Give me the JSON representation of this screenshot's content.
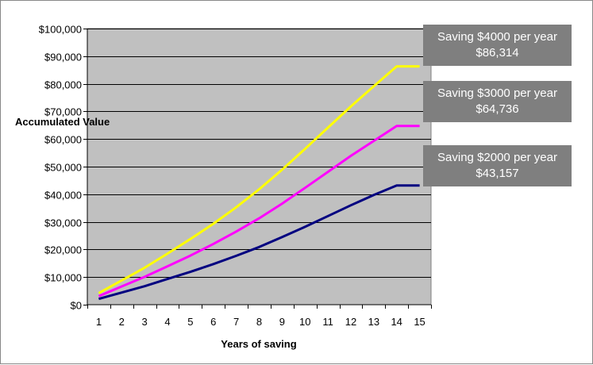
{
  "chart_data": {
    "type": "line",
    "title": "",
    "xlabel": "Years of saving",
    "ylabel": "Accumulated Value",
    "x": [
      1,
      2,
      3,
      4,
      5,
      6,
      7,
      8,
      9,
      10,
      11,
      12,
      13,
      14,
      15
    ],
    "xlim": [
      0.5,
      15.5
    ],
    "ylim": [
      0,
      100000
    ],
    "y_ticks": [
      0,
      10000,
      20000,
      30000,
      40000,
      50000,
      60000,
      70000,
      80000,
      90000,
      100000
    ],
    "y_tick_labels": [
      "$0",
      "$10,000",
      "$20,000",
      "$30,000",
      "$40,000",
      "$50,000",
      "$60,000",
      "$70,000",
      "$80,000",
      "$90,000",
      "$100,000"
    ],
    "grid": true,
    "plot_background": "#c0c0c0",
    "series": [
      {
        "color": "#ffff00",
        "values": [
          4200,
          8800,
          13400,
          18500,
          23800,
          29300,
          35300,
          41800,
          48900,
          56400,
          64100,
          71800,
          79100,
          86314,
          86314
        ]
      },
      {
        "color": "#ff00ff",
        "values": [
          3100,
          6600,
          10100,
          13900,
          17800,
          22000,
          26500,
          31300,
          36600,
          42300,
          48100,
          53900,
          59300,
          64736,
          64736
        ]
      },
      {
        "color": "#000080",
        "values": [
          2100,
          4400,
          6700,
          9300,
          11900,
          14700,
          17700,
          20900,
          24500,
          28200,
          32100,
          36000,
          39700,
          43157,
          43157
        ]
      }
    ],
    "annotations": [
      {
        "line1": "Saving $4000  per year",
        "line2": "$86,314"
      },
      {
        "line1": "Saving $3000  per year",
        "line2": "$64,736"
      },
      {
        "line1": "Saving $2000  per year",
        "line2": "$43,157"
      }
    ]
  }
}
